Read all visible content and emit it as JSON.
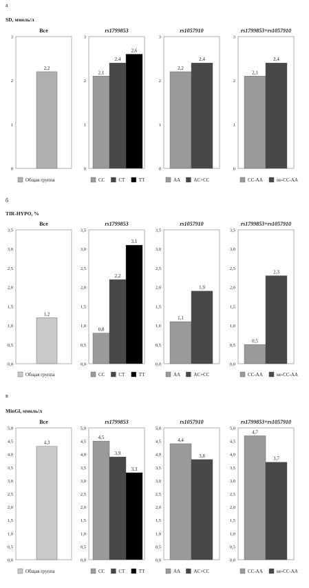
{
  "colors": {
    "light": "#c9c9c9",
    "mid": "#9a9a9a",
    "dark": "#484848",
    "black": "#000000"
  },
  "chart_data": [
    {
      "type": "bar",
      "panel_label": "а",
      "title": "SD, ммоль/л",
      "ylim": [
        0,
        3
      ],
      "yticks": [
        "0",
        "1",
        "2",
        "3"
      ],
      "subplots": [
        {
          "title": "Все",
          "categories": [
            "Общая группа"
          ],
          "values": [
            2.2
          ],
          "labels": [
            "2,2"
          ],
          "colors": [
            "#b0b0b0"
          ]
        },
        {
          "title": "rs1799853",
          "categories": [
            "CC",
            "CT",
            "TT"
          ],
          "values": [
            2.1,
            2.4,
            2.6
          ],
          "labels": [
            "2,1",
            "2,4",
            "2,6"
          ],
          "colors": [
            "#9a9a9a",
            "#484848",
            "#000000"
          ]
        },
        {
          "title": "rs1057910",
          "categories": [
            "AA",
            "AC+CC"
          ],
          "values": [
            2.2,
            2.4
          ],
          "labels": [
            "2,2",
            "2,4"
          ],
          "colors": [
            "#9a9a9a",
            "#484848"
          ]
        },
        {
          "title": "rs1799853+rs1057910",
          "categories": [
            "CC-AA",
            "не-CC-AA"
          ],
          "values": [
            2.1,
            2.4
          ],
          "labels": [
            "2,1",
            "2,4"
          ],
          "colors": [
            "#9a9a9a",
            "#484848"
          ]
        }
      ]
    },
    {
      "type": "bar",
      "panel_label": "б",
      "title": "TIR-HYPO, %",
      "ylim": [
        0,
        3.5
      ],
      "yticks": [
        "0,0",
        "0,5",
        "1,0",
        "1,5",
        "2,0",
        "2,5",
        "3,0",
        "3,5"
      ],
      "subplots": [
        {
          "title": "Все",
          "categories": [
            "Общая группа"
          ],
          "values": [
            1.2
          ],
          "labels": [
            "1,2"
          ],
          "colors": [
            "#c9c9c9"
          ]
        },
        {
          "title": "rs1799853",
          "categories": [
            "CC",
            "CT",
            "TT"
          ],
          "values": [
            0.8,
            2.2,
            3.1
          ],
          "labels": [
            "0,8",
            "2,2",
            "3,1"
          ],
          "colors": [
            "#9a9a9a",
            "#484848",
            "#000000"
          ]
        },
        {
          "title": "rs1057910",
          "categories": [
            "AA",
            "AC+CC"
          ],
          "values": [
            1.1,
            1.9
          ],
          "labels": [
            "1,1",
            "1,9"
          ],
          "colors": [
            "#9a9a9a",
            "#484848"
          ]
        },
        {
          "title": "rs1799853+rs1057910",
          "categories": [
            "CC-AA",
            "не-CC-AA"
          ],
          "values": [
            0.5,
            2.3
          ],
          "labels": [
            "0,5",
            "2,3"
          ],
          "colors": [
            "#9a9a9a",
            "#484848"
          ]
        }
      ]
    },
    {
      "type": "bar",
      "panel_label": "в",
      "title": "MinGl, ммоль/л",
      "ylim": [
        0,
        5
      ],
      "yticks": [
        "0,0",
        "0,5",
        "1,0",
        "1,5",
        "2,0",
        "2,5",
        "3,0",
        "3,5",
        "4,0",
        "4,5",
        "5,0"
      ],
      "subplots": [
        {
          "title": "Все",
          "categories": [
            "Общая группа"
          ],
          "values": [
            4.3
          ],
          "labels": [
            "4,3"
          ],
          "colors": [
            "#c9c9c9"
          ]
        },
        {
          "title": "rs1799853",
          "categories": [
            "CC",
            "CT",
            "TT"
          ],
          "values": [
            4.5,
            3.9,
            3.3
          ],
          "labels": [
            "4,5",
            "3,9",
            "3,3"
          ],
          "colors": [
            "#9a9a9a",
            "#484848",
            "#000000"
          ]
        },
        {
          "title": "rs1057910",
          "categories": [
            "AA",
            "AC+CC"
          ],
          "values": [
            4.4,
            3.8
          ],
          "labels": [
            "4,4",
            "3,8"
          ],
          "colors": [
            "#9a9a9a",
            "#484848"
          ]
        },
        {
          "title": "rs1799853+rs1057910",
          "categories": [
            "CC-AA",
            "не-CC-AA"
          ],
          "values": [
            4.7,
            3.7
          ],
          "labels": [
            "4,7",
            "3,7"
          ],
          "colors": [
            "#9a9a9a",
            "#484848"
          ]
        }
      ]
    }
  ]
}
